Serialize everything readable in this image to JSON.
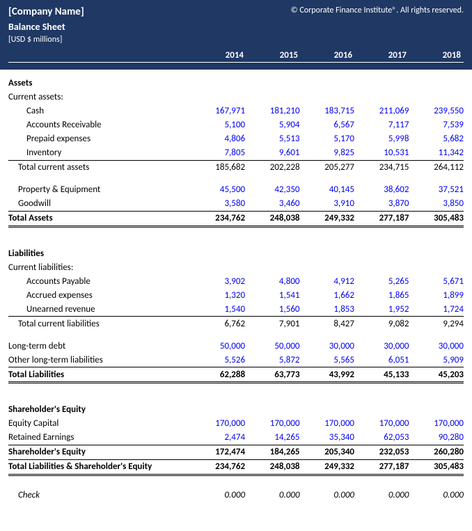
{
  "header": {
    "company_name": "[Company Name]",
    "copyright": "© Corporate Finance Institute®. All rights reserved.",
    "title": "Balance Sheet",
    "units": "[USD $ millions]"
  },
  "years": [
    "2014",
    "2015",
    "2016",
    "2017",
    "2018"
  ],
  "sections": {
    "assets": {
      "heading": "Assets",
      "current_label": "Current assets:",
      "rows": [
        {
          "label": "Cash",
          "vals": [
            "167,971",
            "181,210",
            "183,715",
            "211,069",
            "239,550"
          ],
          "blue": true
        },
        {
          "label": "Accounts Receivable",
          "vals": [
            "5,100",
            "5,904",
            "6,567",
            "7,117",
            "7,539"
          ],
          "blue": true
        },
        {
          "label": "Prepaid expenses",
          "vals": [
            "4,806",
            "5,513",
            "5,170",
            "5,998",
            "5,682"
          ],
          "blue": true
        },
        {
          "label": "Inventory",
          "vals": [
            "7,805",
            "9,601",
            "9,825",
            "10,531",
            "11,342"
          ],
          "blue": true
        }
      ],
      "current_total": {
        "label": "Total current assets",
        "vals": [
          "185,682",
          "202,228",
          "205,277",
          "234,715",
          "264,112"
        ]
      },
      "noncurrent": [
        {
          "label": "Property & Equipment",
          "vals": [
            "45,500",
            "42,350",
            "40,145",
            "38,602",
            "37,521"
          ],
          "blue": true
        },
        {
          "label": "Goodwill",
          "vals": [
            "3,580",
            "3,460",
            "3,910",
            "3,870",
            "3,850"
          ],
          "blue": true
        }
      ],
      "total": {
        "label": "Total Assets",
        "vals": [
          "234,762",
          "248,038",
          "249,332",
          "277,187",
          "305,483"
        ]
      }
    },
    "liabilities": {
      "heading": "Liabilities",
      "current_label": "Current liabilities:",
      "rows": [
        {
          "label": "Accounts Payable",
          "vals": [
            "3,902",
            "4,800",
            "4,912",
            "5,265",
            "5,671"
          ],
          "blue": true
        },
        {
          "label": "Accrued expenses",
          "vals": [
            "1,320",
            "1,541",
            "1,662",
            "1,865",
            "1,899"
          ],
          "blue": true
        },
        {
          "label": "Unearned revenue",
          "vals": [
            "1,540",
            "1,560",
            "1,853",
            "1,952",
            "1,724"
          ],
          "blue": true
        }
      ],
      "current_total": {
        "label": "Total current liabilities",
        "vals": [
          "6,762",
          "7,901",
          "8,427",
          "9,082",
          "9,294"
        ]
      },
      "noncurrent": [
        {
          "label": "Long-term debt",
          "vals": [
            "50,000",
            "50,000",
            "30,000",
            "30,000",
            "30,000"
          ],
          "blue": true
        },
        {
          "label": "Other long-term liabilities",
          "vals": [
            "5,526",
            "5,872",
            "5,565",
            "6,051",
            "5,909"
          ],
          "blue": true
        }
      ],
      "total": {
        "label": "Total Liabilities",
        "vals": [
          "62,288",
          "63,773",
          "43,992",
          "45,133",
          "45,203"
        ]
      }
    },
    "equity": {
      "heading": "Shareholder's Equity",
      "rows": [
        {
          "label": "Equity Capital",
          "vals": [
            "170,000",
            "170,000",
            "170,000",
            "170,000",
            "170,000"
          ],
          "blue": true
        },
        {
          "label": "Retained Earnings",
          "vals": [
            "2,474",
            "14,265",
            "35,340",
            "62,053",
            "90,280"
          ],
          "blue": true
        }
      ],
      "subtotal": {
        "label": "Shareholder's Equity",
        "vals": [
          "172,474",
          "184,265",
          "205,340",
          "232,053",
          "260,280"
        ]
      },
      "grand": {
        "label": "Total Liabilities & Shareholder's Equity",
        "vals": [
          "234,762",
          "248,038",
          "249,332",
          "277,187",
          "305,483"
        ]
      }
    },
    "check": {
      "label": "Check",
      "vals": [
        "0.000",
        "0.000",
        "0.000",
        "0.000",
        "0.000"
      ]
    }
  }
}
